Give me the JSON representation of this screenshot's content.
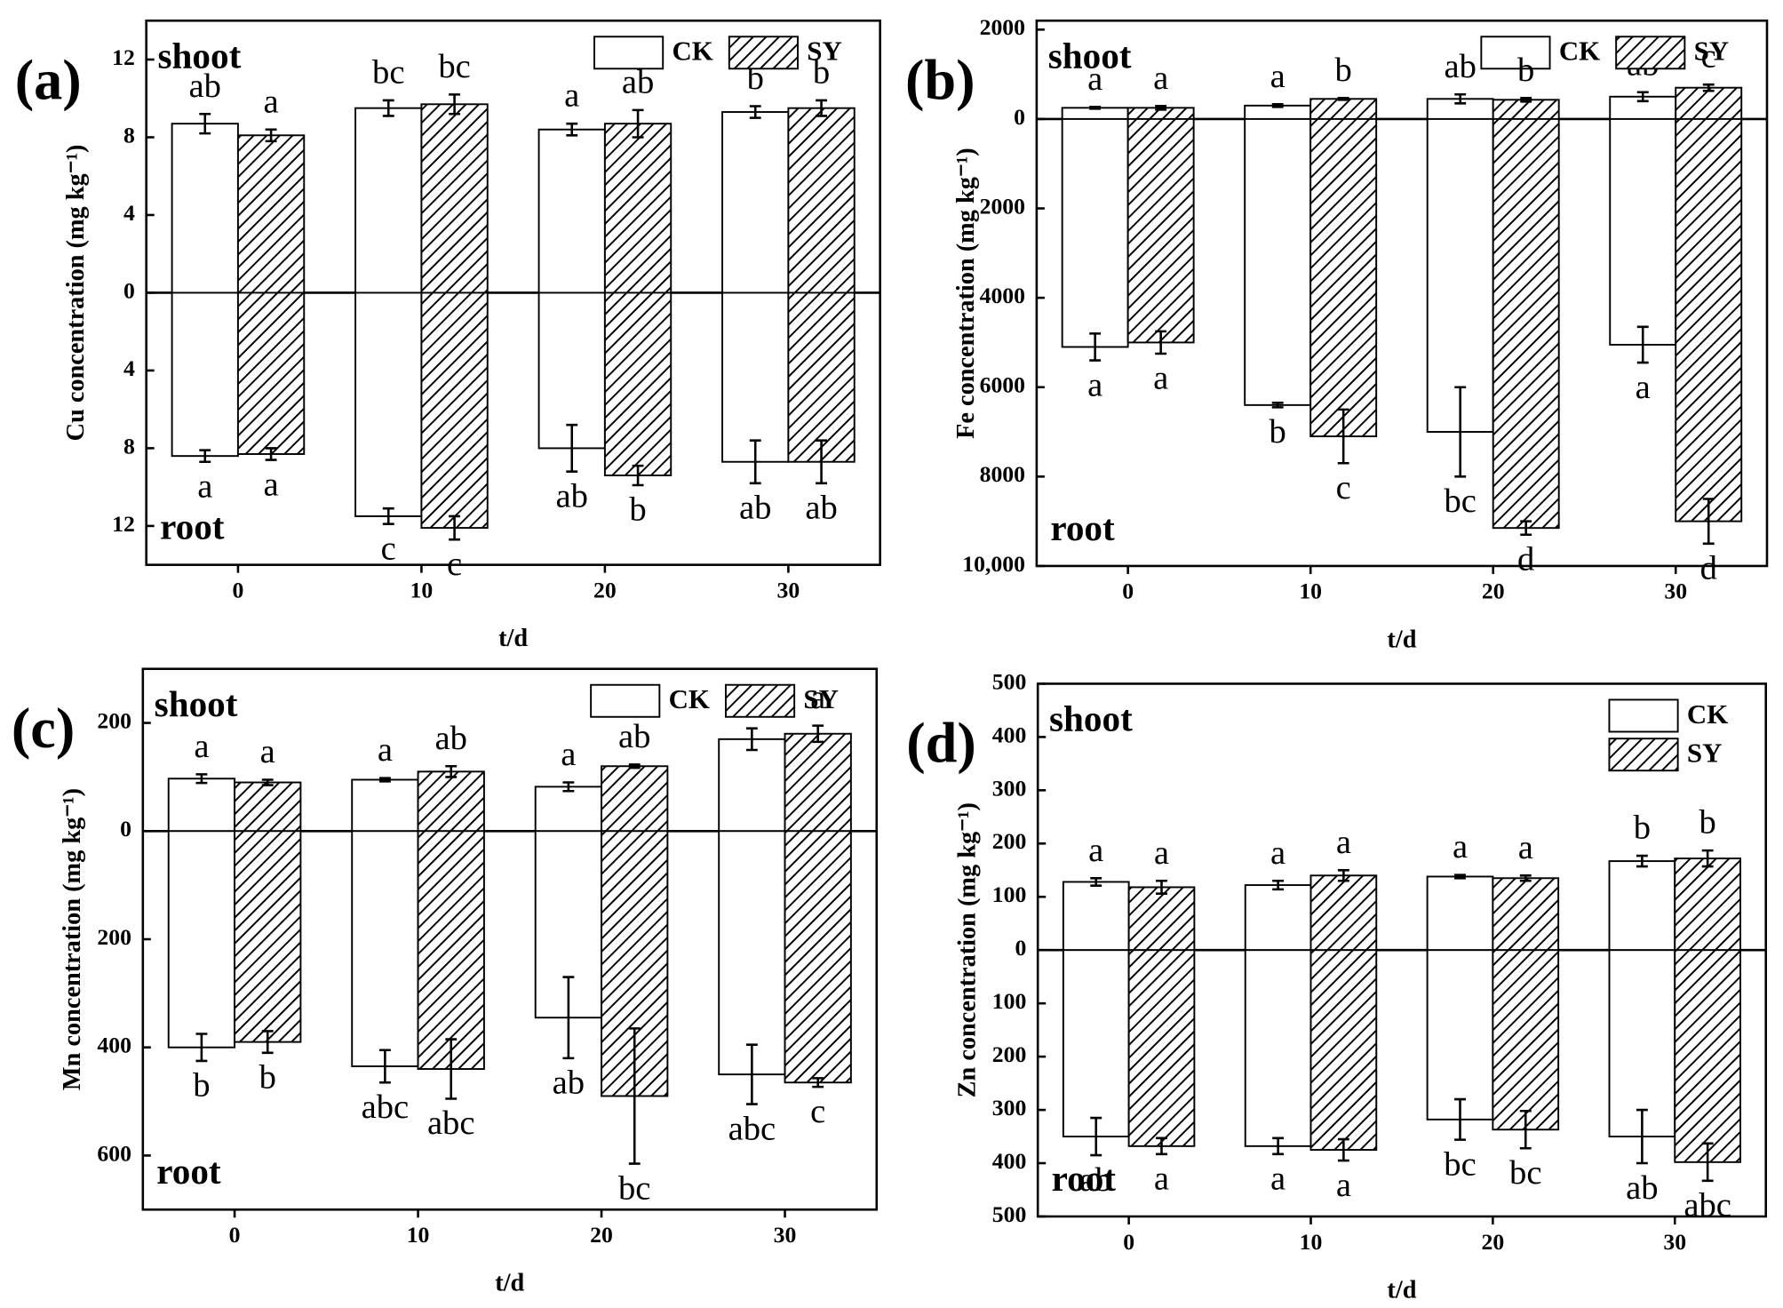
{
  "chart_data": [
    {
      "type": "bar",
      "panel": "(a)",
      "ylabel": "Cu concentration (mg kg⁻¹)",
      "xlabel": "t/d",
      "shoot_label": "shoot",
      "root_label": "root",
      "categories": [
        "0",
        "10",
        "20",
        "30"
      ],
      "ylim": [
        -14,
        14
      ],
      "yticks": [
        12,
        8,
        4,
        0,
        {
          "value": -4,
          "label": "4"
        },
        {
          "value": -8,
          "label": "8"
        },
        {
          "value": -12,
          "label": "12"
        }
      ],
      "legend": "upper right",
      "legend_layout": "horizontal",
      "series": [
        {
          "name": "CK",
          "fill": "#ffffff",
          "hatch": false,
          "shoot": [
            8.7,
            9.5,
            8.4,
            9.3
          ],
          "shoot_err": [
            0.5,
            0.4,
            0.3,
            0.3
          ],
          "shoot_letters": [
            "ab",
            "bc",
            "a",
            "b"
          ],
          "root": [
            -8.4,
            -11.5,
            -8.0,
            -8.7
          ],
          "root_err": [
            0.3,
            0.4,
            1.2,
            1.1
          ],
          "root_letters": [
            "a",
            "c",
            "ab",
            "ab"
          ]
        },
        {
          "name": "SY",
          "fill": "#ffffff",
          "hatch": true,
          "shoot": [
            8.1,
            9.7,
            8.7,
            9.5
          ],
          "shoot_err": [
            0.3,
            0.5,
            0.7,
            0.4
          ],
          "shoot_letters": [
            "a",
            "bc",
            "ab",
            "b"
          ],
          "root": [
            -8.3,
            -12.1,
            -9.4,
            -8.7
          ],
          "root_err": [
            0.3,
            0.6,
            0.5,
            1.1
          ],
          "root_letters": [
            "a",
            "c",
            "b",
            "ab"
          ]
        }
      ]
    },
    {
      "type": "bar",
      "panel": "(b)",
      "ylabel": "Fe concentration (mg kg⁻¹)",
      "xlabel": "t/d",
      "shoot_label": "shoot",
      "root_label": "root",
      "categories": [
        "0",
        "10",
        "20",
        "30"
      ],
      "ylim": [
        -10000,
        2200
      ],
      "yticks": [
        2000,
        0,
        {
          "value": -2000,
          "label": "2000"
        },
        {
          "value": -4000,
          "label": "4000"
        },
        {
          "value": -6000,
          "label": "6000"
        },
        {
          "value": -8000,
          "label": "8000"
        },
        {
          "value": -10000,
          "label": "10,000"
        }
      ],
      "legend": "upper right",
      "legend_layout": "horizontal",
      "series": [
        {
          "name": "CK",
          "fill": "#ffffff",
          "hatch": false,
          "shoot": [
            250,
            300,
            450,
            500
          ],
          "shoot_err": [
            20,
            30,
            100,
            100
          ],
          "shoot_letters": [
            "a",
            "a",
            "ab",
            "ab"
          ],
          "root": [
            -5100,
            -6400,
            -7000,
            -5050
          ],
          "root_err": [
            300,
            50,
            1000,
            400
          ],
          "root_letters": [
            "a",
            "b",
            "bc",
            "a"
          ]
        },
        {
          "name": "SY",
          "fill": "#ffffff",
          "hatch": true,
          "shoot": [
            250,
            450,
            430,
            700
          ],
          "shoot_err": [
            40,
            20,
            40,
            70
          ],
          "shoot_letters": [
            "a",
            "b",
            "b",
            "c"
          ],
          "root": [
            -5000,
            -7100,
            -9150,
            -9000
          ],
          "root_err": [
            250,
            600,
            150,
            500
          ],
          "root_letters": [
            "a",
            "c",
            "d",
            "d"
          ]
        }
      ]
    },
    {
      "type": "bar",
      "panel": "(c)",
      "ylabel": "Mn concentration (mg kg⁻¹)",
      "xlabel": "t/d",
      "shoot_label": "shoot",
      "root_label": "root",
      "categories": [
        "0",
        "10",
        "20",
        "30"
      ],
      "ylim": [
        -700,
        300
      ],
      "yticks": [
        200,
        0,
        {
          "value": -200,
          "label": "200"
        },
        {
          "value": -400,
          "label": "400"
        },
        {
          "value": -600,
          "label": "600"
        }
      ],
      "legend": "upper right",
      "legend_layout": "horizontal",
      "series": [
        {
          "name": "CK",
          "fill": "#ffffff",
          "hatch": false,
          "shoot": [
            97,
            95,
            82,
            170
          ],
          "shoot_err": [
            8,
            3,
            8,
            20
          ],
          "shoot_letters": [
            "a",
            "a",
            "a",
            "a"
          ],
          "root": [
            -400,
            -435,
            -345,
            -450
          ],
          "root_err": [
            25,
            30,
            75,
            55
          ],
          "root_letters": [
            "b",
            "abc",
            "ab",
            "abc"
          ]
        },
        {
          "name": "SY",
          "fill": "#ffffff",
          "hatch": true,
          "shoot": [
            90,
            110,
            120,
            180
          ],
          "shoot_err": [
            5,
            10,
            3,
            15
          ],
          "shoot_letters": [
            "a",
            "ab",
            "ab",
            "a"
          ],
          "root": [
            -390,
            -440,
            -490,
            -465
          ],
          "root_err": [
            20,
            55,
            125,
            8
          ],
          "root_letters": [
            "b",
            "abc",
            "bc",
            "c"
          ]
        }
      ]
    },
    {
      "type": "bar",
      "panel": "(d)",
      "ylabel": "Zn concentration (mg kg⁻¹)",
      "xlabel": "t/d",
      "shoot_label": "shoot",
      "root_label": "root",
      "categories": [
        "0",
        "10",
        "20",
        "30"
      ],
      "ylim": [
        -500,
        500
      ],
      "yticks": [
        500,
        400,
        300,
        200,
        100,
        0,
        {
          "value": -100,
          "label": "100"
        },
        {
          "value": -200,
          "label": "200"
        },
        {
          "value": -300,
          "label": "300"
        },
        {
          "value": -400,
          "label": "400"
        },
        {
          "value": -500,
          "label": "500"
        }
      ],
      "legend": "upper right",
      "legend_layout": "vertical",
      "series": [
        {
          "name": "CK",
          "fill": "#ffffff",
          "hatch": false,
          "shoot": [
            128,
            122,
            138,
            167
          ],
          "shoot_err": [
            7,
            8,
            3,
            10
          ],
          "shoot_letters": [
            "a",
            "a",
            "a",
            "b"
          ],
          "root": [
            -350,
            -368,
            -318,
            -350
          ],
          "root_err": [
            35,
            15,
            38,
            50
          ],
          "root_letters": [
            "ab",
            "a",
            "bc",
            "ab"
          ]
        },
        {
          "name": "SY",
          "fill": "#ffffff",
          "hatch": true,
          "shoot": [
            118,
            140,
            135,
            172
          ],
          "shoot_err": [
            12,
            10,
            5,
            15
          ],
          "shoot_letters": [
            "a",
            "a",
            "a",
            "b"
          ],
          "root": [
            -368,
            -375,
            -337,
            -398
          ],
          "root_err": [
            15,
            20,
            35,
            35
          ],
          "root_letters": [
            "a",
            "a",
            "bc",
            "abc"
          ]
        }
      ]
    }
  ]
}
